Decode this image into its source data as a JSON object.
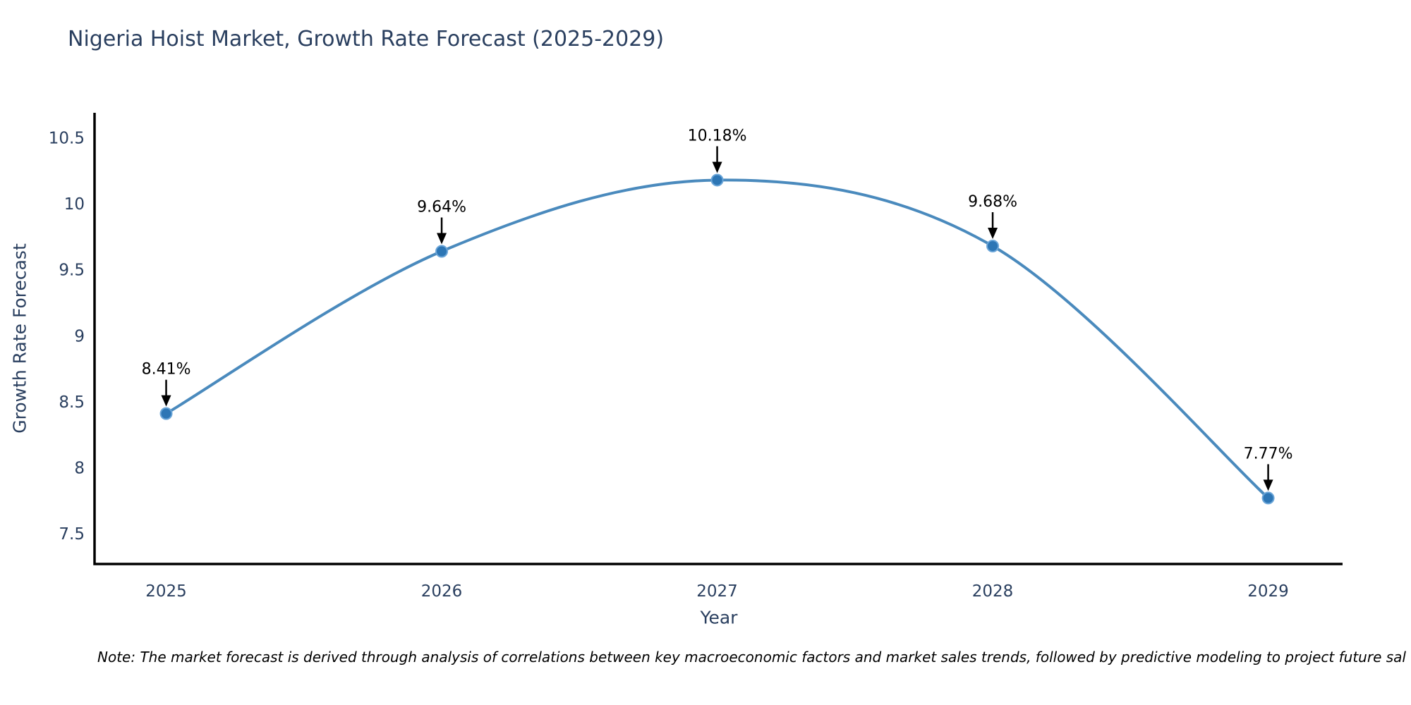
{
  "chart_data": {
    "type": "line",
    "title": "Nigeria Hoist Market, Growth Rate Forecast (2025-2029)",
    "xlabel": "Year",
    "ylabel": "Growth Rate Forecast",
    "x": [
      2025,
      2026,
      2027,
      2028,
      2029
    ],
    "values": [
      8.41,
      9.64,
      10.18,
      9.68,
      7.77
    ],
    "point_labels": [
      "8.41%",
      "9.64%",
      "10.18%",
      "9.68%",
      "7.77%"
    ],
    "xticks": [
      2025,
      2026,
      2027,
      2028,
      2029
    ],
    "xtick_labels": [
      "2025",
      "2026",
      "2027",
      "2028",
      "2029"
    ],
    "yticks": [
      7.5,
      8,
      8.5,
      9,
      9.5,
      10,
      10.5
    ],
    "ytick_labels": [
      "7.5",
      "8",
      "8.5",
      "9",
      "9.5",
      "10",
      "10.5"
    ],
    "xlim": [
      2024.74,
      2029.27
    ],
    "ylim": [
      7.27,
      10.69
    ],
    "grid": false,
    "legend": "none",
    "line_shape": "spline",
    "colors": {
      "line": "#4a8abd",
      "marker": "#2d76b5",
      "marker_edge": "#6aa5d8",
      "text": "#2a3f5f",
      "annotation": "#000000",
      "axis": "#000000",
      "background": "#ffffff"
    }
  },
  "footer": {
    "note": "Note: The market forecast is derived through analysis of correlations between key macroeconomic factors and market sales trends, followed by predictive modeling to project future sal"
  }
}
